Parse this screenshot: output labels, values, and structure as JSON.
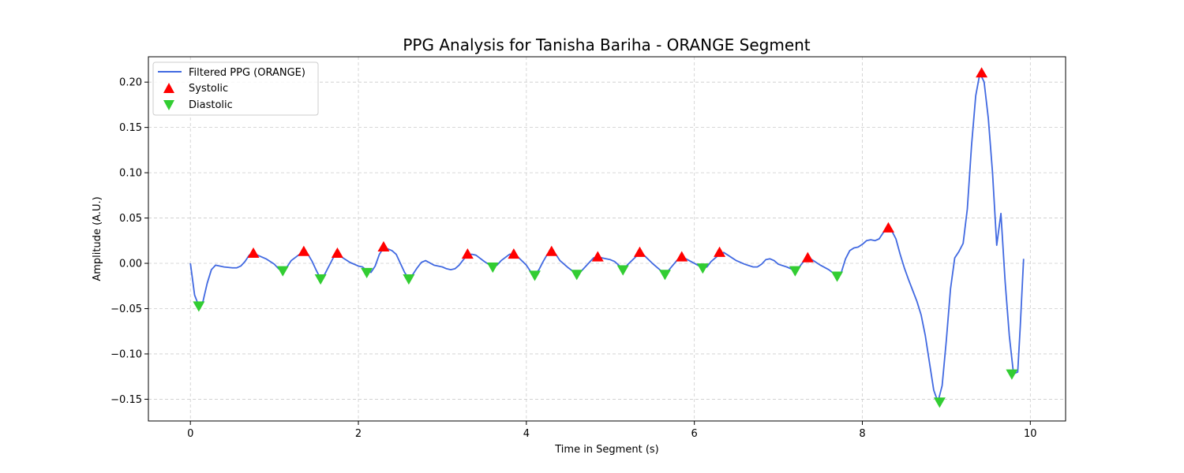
{
  "chart_data": {
    "type": "line",
    "title": "PPG Analysis for Tanisha Bariha - ORANGE Segment",
    "xlabel": "Time in Segment (s)",
    "ylabel": "Amplitude (A.U.)",
    "xlim": [
      -0.5,
      10.42
    ],
    "ylim": [
      -0.174,
      0.228
    ],
    "xticks": [
      0,
      2,
      4,
      6,
      8,
      10
    ],
    "yticks": [
      -0.15,
      -0.1,
      -0.05,
      0.0,
      0.05,
      0.1,
      0.15,
      0.2
    ],
    "ytick_labels": [
      "−0.15",
      "−0.10",
      "−0.05",
      "0.00",
      "0.05",
      "0.10",
      "0.15",
      "0.20"
    ],
    "grid": true,
    "legend_position": "top-left",
    "series": [
      {
        "name": "Filtered PPG (ORANGE)",
        "kind": "line",
        "color": "#4169e1",
        "points": [
          [
            0.0,
            0.0
          ],
          [
            0.05,
            -0.035
          ],
          [
            0.1,
            -0.047
          ],
          [
            0.15,
            -0.042
          ],
          [
            0.2,
            -0.022
          ],
          [
            0.25,
            -0.007
          ],
          [
            0.3,
            -0.002
          ],
          [
            0.4,
            -0.004
          ],
          [
            0.5,
            -0.005
          ],
          [
            0.55,
            -0.005
          ],
          [
            0.6,
            -0.003
          ],
          [
            0.65,
            0.002
          ],
          [
            0.7,
            0.009
          ],
          [
            0.75,
            0.011
          ],
          [
            0.8,
            0.009
          ],
          [
            0.9,
            0.005
          ],
          [
            1.0,
            -0.001
          ],
          [
            1.05,
            -0.006
          ],
          [
            1.1,
            -0.008
          ],
          [
            1.15,
            -0.004
          ],
          [
            1.2,
            0.003
          ],
          [
            1.3,
            0.01
          ],
          [
            1.35,
            0.013
          ],
          [
            1.4,
            0.01
          ],
          [
            1.45,
            0.002
          ],
          [
            1.5,
            -0.008
          ],
          [
            1.55,
            -0.017
          ],
          [
            1.6,
            -0.012
          ],
          [
            1.65,
            -0.003
          ],
          [
            1.7,
            0.006
          ],
          [
            1.75,
            0.011
          ],
          [
            1.8,
            0.007
          ],
          [
            1.9,
            0.001
          ],
          [
            2.0,
            -0.003
          ],
          [
            2.05,
            -0.004
          ],
          [
            2.1,
            -0.008
          ],
          [
            2.15,
            -0.01
          ],
          [
            2.2,
            -0.003
          ],
          [
            2.25,
            0.01
          ],
          [
            2.3,
            0.017
          ],
          [
            2.35,
            0.016
          ],
          [
            2.4,
            0.014
          ],
          [
            2.45,
            0.01
          ],
          [
            2.5,
            0.0
          ],
          [
            2.55,
            -0.01
          ],
          [
            2.6,
            -0.017
          ],
          [
            2.65,
            -0.012
          ],
          [
            2.7,
            -0.005
          ],
          [
            2.75,
            0.001
          ],
          [
            2.8,
            0.003
          ],
          [
            2.9,
            -0.002
          ],
          [
            3.0,
            -0.004
          ],
          [
            3.05,
            -0.006
          ],
          [
            3.1,
            -0.007
          ],
          [
            3.15,
            -0.006
          ],
          [
            3.2,
            -0.002
          ],
          [
            3.25,
            0.004
          ],
          [
            3.3,
            0.009
          ],
          [
            3.35,
            0.01
          ],
          [
            3.4,
            0.009
          ],
          [
            3.5,
            0.002
          ],
          [
            3.6,
            -0.004
          ],
          [
            3.65,
            -0.002
          ],
          [
            3.7,
            0.003
          ],
          [
            3.8,
            0.01
          ],
          [
            3.85,
            0.01
          ],
          [
            3.9,
            0.007
          ],
          [
            4.0,
            -0.002
          ],
          [
            4.05,
            -0.009
          ],
          [
            4.1,
            -0.013
          ],
          [
            4.15,
            -0.007
          ],
          [
            4.2,
            0.002
          ],
          [
            4.25,
            0.01
          ],
          [
            4.3,
            0.013
          ],
          [
            4.35,
            0.01
          ],
          [
            4.4,
            0.003
          ],
          [
            4.5,
            -0.005
          ],
          [
            4.6,
            -0.012
          ],
          [
            4.65,
            -0.009
          ],
          [
            4.7,
            -0.004
          ],
          [
            4.8,
            0.006
          ],
          [
            4.85,
            0.007
          ],
          [
            4.9,
            0.006
          ],
          [
            5.0,
            0.004
          ],
          [
            5.05,
            0.002
          ],
          [
            5.1,
            -0.002
          ],
          [
            5.15,
            -0.007
          ],
          [
            5.2,
            -0.002
          ],
          [
            5.3,
            0.007
          ],
          [
            5.35,
            0.012
          ],
          [
            5.4,
            0.009
          ],
          [
            5.5,
            0.0
          ],
          [
            5.6,
            -0.008
          ],
          [
            5.65,
            -0.012
          ],
          [
            5.7,
            -0.007
          ],
          [
            5.8,
            0.004
          ],
          [
            5.85,
            0.007
          ],
          [
            5.9,
            0.005
          ],
          [
            6.0,
            0.0
          ],
          [
            6.1,
            -0.005
          ],
          [
            6.15,
            -0.004
          ],
          [
            6.2,
            0.002
          ],
          [
            6.3,
            0.01
          ],
          [
            6.35,
            0.012
          ],
          [
            6.4,
            0.009
          ],
          [
            6.5,
            0.003
          ],
          [
            6.6,
            -0.001
          ],
          [
            6.7,
            -0.004
          ],
          [
            6.75,
            -0.004
          ],
          [
            6.8,
            -0.001
          ],
          [
            6.85,
            0.004
          ],
          [
            6.9,
            0.005
          ],
          [
            6.95,
            0.003
          ],
          [
            7.0,
            -0.001
          ],
          [
            7.1,
            -0.004
          ],
          [
            7.2,
            -0.008
          ],
          [
            7.25,
            -0.004
          ],
          [
            7.3,
            0.002
          ],
          [
            7.35,
            0.006
          ],
          [
            7.4,
            0.004
          ],
          [
            7.5,
            -0.002
          ],
          [
            7.6,
            -0.007
          ],
          [
            7.7,
            -0.014
          ],
          [
            7.75,
            -0.01
          ],
          [
            7.8,
            0.005
          ],
          [
            7.85,
            0.014
          ],
          [
            7.9,
            0.017
          ],
          [
            7.95,
            0.018
          ],
          [
            8.0,
            0.021
          ],
          [
            8.05,
            0.025
          ],
          [
            8.1,
            0.026
          ],
          [
            8.15,
            0.025
          ],
          [
            8.2,
            0.027
          ],
          [
            8.25,
            0.034
          ],
          [
            8.3,
            0.038
          ],
          [
            8.35,
            0.036
          ],
          [
            8.4,
            0.027
          ],
          [
            8.45,
            0.01
          ],
          [
            8.5,
            -0.005
          ],
          [
            8.55,
            -0.018
          ],
          [
            8.6,
            -0.03
          ],
          [
            8.65,
            -0.042
          ],
          [
            8.7,
            -0.057
          ],
          [
            8.75,
            -0.08
          ],
          [
            8.8,
            -0.11
          ],
          [
            8.85,
            -0.14
          ],
          [
            8.9,
            -0.153
          ],
          [
            8.95,
            -0.135
          ],
          [
            9.0,
            -0.085
          ],
          [
            9.05,
            -0.028
          ],
          [
            9.1,
            0.006
          ],
          [
            9.15,
            0.013
          ],
          [
            9.2,
            0.022
          ],
          [
            9.25,
            0.06
          ],
          [
            9.3,
            0.13
          ],
          [
            9.35,
            0.185
          ],
          [
            9.4,
            0.21
          ],
          [
            9.45,
            0.2
          ],
          [
            9.5,
            0.16
          ],
          [
            9.55,
            0.1
          ],
          [
            9.6,
            0.02
          ],
          [
            9.65,
            0.055
          ],
          [
            9.7,
            -0.02
          ],
          [
            9.75,
            -0.08
          ],
          [
            9.8,
            -0.122
          ],
          [
            9.85,
            -0.12
          ],
          [
            9.88,
            -0.07
          ],
          [
            9.92,
            0.005
          ]
        ]
      },
      {
        "name": "Systolic",
        "kind": "marker",
        "marker": "triangle-up",
        "color": "#ff0000",
        "points": [
          [
            0.75,
            0.011
          ],
          [
            1.35,
            0.013
          ],
          [
            1.75,
            0.011
          ],
          [
            2.3,
            0.018
          ],
          [
            3.3,
            0.01
          ],
          [
            3.85,
            0.01
          ],
          [
            4.3,
            0.013
          ],
          [
            4.85,
            0.007
          ],
          [
            5.35,
            0.012
          ],
          [
            5.85,
            0.007
          ],
          [
            6.3,
            0.012
          ],
          [
            7.35,
            0.006
          ],
          [
            8.31,
            0.039
          ],
          [
            9.42,
            0.21
          ]
        ]
      },
      {
        "name": "Diastolic",
        "kind": "marker",
        "marker": "triangle-down",
        "color": "#32cd32",
        "points": [
          [
            0.1,
            -0.047
          ],
          [
            1.1,
            -0.008
          ],
          [
            1.55,
            -0.017
          ],
          [
            2.1,
            -0.01
          ],
          [
            2.6,
            -0.017
          ],
          [
            3.6,
            -0.004
          ],
          [
            4.1,
            -0.013
          ],
          [
            4.6,
            -0.012
          ],
          [
            5.15,
            -0.007
          ],
          [
            5.65,
            -0.012
          ],
          [
            6.1,
            -0.005
          ],
          [
            7.2,
            -0.008
          ],
          [
            7.7,
            -0.014
          ],
          [
            8.92,
            -0.153
          ],
          [
            9.78,
            -0.122
          ]
        ]
      }
    ]
  }
}
